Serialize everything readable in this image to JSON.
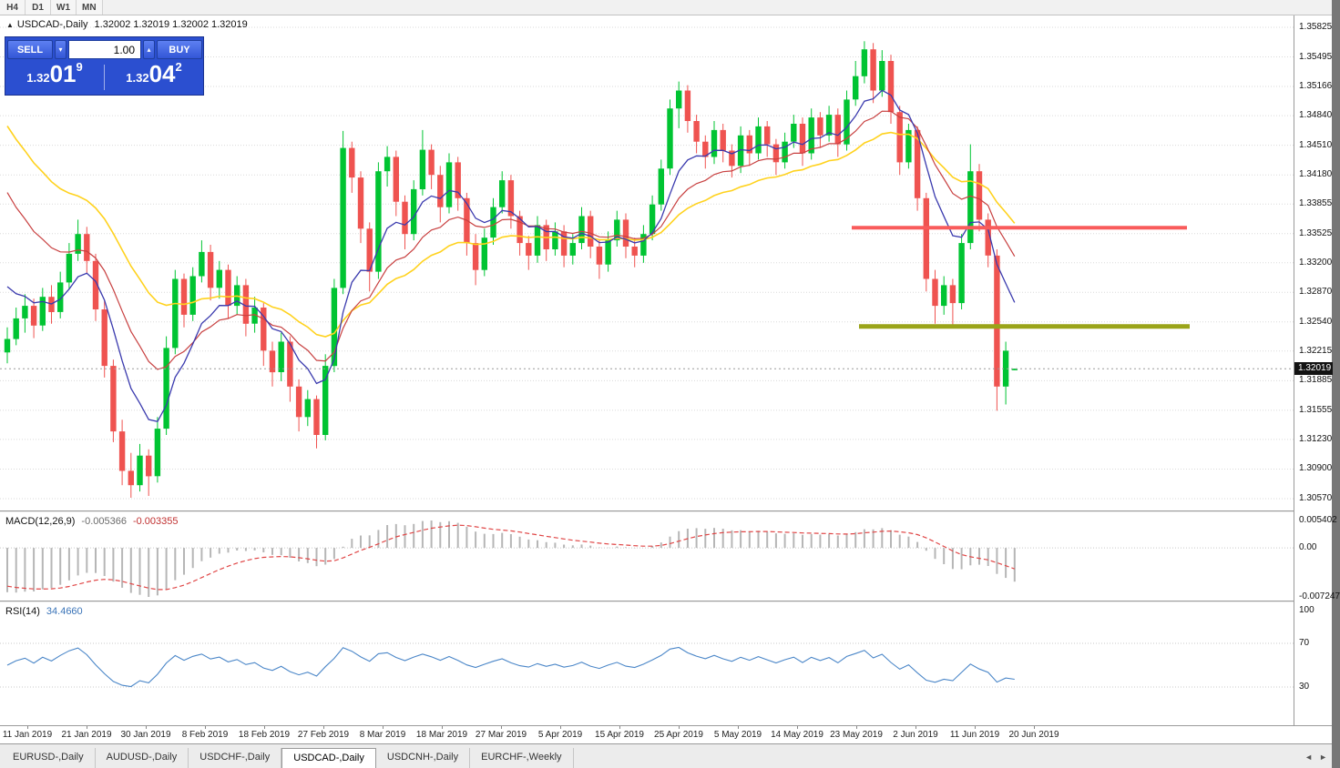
{
  "toolbar": {
    "timeframes": [
      "H4",
      "D1",
      "W1",
      "MN"
    ]
  },
  "chart_header": {
    "collapse_icon": "▲",
    "title": "USDCAD-,Daily",
    "ohlc": "1.32002 1.32019 1.32002 1.32019"
  },
  "trade_panel": {
    "sell_label": "SELL",
    "buy_label": "BUY",
    "volume": "1.00",
    "volume_down_icon": "▾",
    "volume_up_icon": "▴",
    "sell_price": {
      "base": "1.32",
      "big": "01",
      "sup": "9"
    },
    "buy_price": {
      "base": "1.32",
      "big": "04",
      "sup": "2"
    }
  },
  "chart_data": {
    "type": "candlestick",
    "symbol": "USDCAD-",
    "timeframe": "Daily",
    "current_price": "1.32019",
    "up_color": "#00c432",
    "down_color": "#ef5350",
    "grid": true,
    "y_range": {
      "top": 1.35825,
      "bottom": 1.3057
    },
    "y_ticks": [
      "1.35825",
      "1.35495",
      "1.35166",
      "1.34840",
      "1.34510",
      "1.34180",
      "1.33855",
      "1.33525",
      "1.33200",
      "1.32870",
      "1.32540",
      "1.32215",
      "1.31885",
      "1.31555",
      "1.31230",
      "1.30900",
      "1.30570"
    ],
    "x_labels": [
      "11 Jan 2019",
      "21 Jan 2019",
      "30 Jan 2019",
      "8 Feb 2019",
      "18 Feb 2019",
      "27 Feb 2019",
      "8 Mar 2019",
      "18 Mar 2019",
      "27 Mar 2019",
      "5 Apr 2019",
      "15 Apr 2019",
      "25 Apr 2019",
      "5 May 2019",
      "14 May 2019",
      "23 May 2019",
      "2 Jun 2019",
      "11 Jun 2019",
      "20 Jun 2019"
    ],
    "candles": [
      [
        1.322,
        1.3248,
        1.3208,
        1.3235
      ],
      [
        1.3235,
        1.327,
        1.3228,
        1.3258
      ],
      [
        1.3258,
        1.3285,
        1.3242,
        1.3272
      ],
      [
        1.3272,
        1.328,
        1.3236,
        1.325
      ],
      [
        1.325,
        1.3292,
        1.3244,
        1.3282
      ],
      [
        1.3282,
        1.3295,
        1.3252,
        1.3265
      ],
      [
        1.3265,
        1.331,
        1.3258,
        1.3298
      ],
      [
        1.3298,
        1.3342,
        1.329,
        1.333
      ],
      [
        1.333,
        1.3368,
        1.3322,
        1.3352
      ],
      [
        1.3352,
        1.336,
        1.3308,
        1.3322
      ],
      [
        1.3322,
        1.333,
        1.3255,
        1.3268
      ],
      [
        1.3268,
        1.3278,
        1.3192,
        1.3205
      ],
      [
        1.3205,
        1.3212,
        1.312,
        1.3132
      ],
      [
        1.3132,
        1.3145,
        1.3072,
        1.3088
      ],
      [
        1.3088,
        1.3108,
        1.3058,
        1.3072
      ],
      [
        1.3072,
        1.3118,
        1.3065,
        1.3105
      ],
      [
        1.3105,
        1.3112,
        1.306,
        1.3082
      ],
      [
        1.3082,
        1.3148,
        1.3075,
        1.3135
      ],
      [
        1.3135,
        1.3238,
        1.3128,
        1.3225
      ],
      [
        1.3225,
        1.3312,
        1.3218,
        1.3302
      ],
      [
        1.3302,
        1.3308,
        1.3248,
        1.3262
      ],
      [
        1.3262,
        1.3315,
        1.3255,
        1.3305
      ],
      [
        1.3305,
        1.3345,
        1.3298,
        1.3332
      ],
      [
        1.3332,
        1.334,
        1.3278,
        1.3292
      ],
      [
        1.3292,
        1.3322,
        1.328,
        1.3312
      ],
      [
        1.3312,
        1.3318,
        1.3258,
        1.3272
      ],
      [
        1.3272,
        1.3305,
        1.3262,
        1.3295
      ],
      [
        1.3295,
        1.3302,
        1.3238,
        1.3252
      ],
      [
        1.3252,
        1.3282,
        1.3242,
        1.327
      ],
      [
        1.327,
        1.3275,
        1.3205,
        1.3222
      ],
      [
        1.3222,
        1.3232,
        1.3182,
        1.3198
      ],
      [
        1.3198,
        1.3242,
        1.3188,
        1.3232
      ],
      [
        1.3232,
        1.3238,
        1.3165,
        1.3182
      ],
      [
        1.3182,
        1.319,
        1.3132,
        1.3148
      ],
      [
        1.3148,
        1.3178,
        1.3138,
        1.3168
      ],
      [
        1.3168,
        1.3172,
        1.3113,
        1.3128
      ],
      [
        1.3128,
        1.3218,
        1.3122,
        1.3205
      ],
      [
        1.3205,
        1.3302,
        1.3198,
        1.3292
      ],
      [
        1.3292,
        1.3467,
        1.3285,
        1.3448
      ],
      [
        1.3448,
        1.3455,
        1.3398,
        1.3415
      ],
      [
        1.3415,
        1.3422,
        1.3342,
        1.3358
      ],
      [
        1.3358,
        1.3365,
        1.3288,
        1.331
      ],
      [
        1.331,
        1.3432,
        1.3302,
        1.3422
      ],
      [
        1.3422,
        1.345,
        1.3405,
        1.3438
      ],
      [
        1.3438,
        1.3445,
        1.3372,
        1.3388
      ],
      [
        1.3388,
        1.3395,
        1.3335,
        1.3352
      ],
      [
        1.3352,
        1.3412,
        1.3345,
        1.3402
      ],
      [
        1.3402,
        1.3468,
        1.3395,
        1.3446
      ],
      [
        1.3446,
        1.3452,
        1.3402,
        1.3418
      ],
      [
        1.3418,
        1.3428,
        1.3365,
        1.3382
      ],
      [
        1.3382,
        1.3442,
        1.3375,
        1.3432
      ],
      [
        1.3432,
        1.3438,
        1.3378,
        1.3392
      ],
      [
        1.3392,
        1.3398,
        1.3328,
        1.3342
      ],
      [
        1.3342,
        1.3352,
        1.3295,
        1.3312
      ],
      [
        1.3312,
        1.3358,
        1.3305,
        1.3348
      ],
      [
        1.3348,
        1.3392,
        1.334,
        1.3382
      ],
      [
        1.3382,
        1.3422,
        1.3375,
        1.3412
      ],
      [
        1.3412,
        1.3418,
        1.3358,
        1.3372
      ],
      [
        1.3372,
        1.3378,
        1.3328,
        1.3342
      ],
      [
        1.3342,
        1.335,
        1.3312,
        1.3328
      ],
      [
        1.3328,
        1.3372,
        1.332,
        1.3362
      ],
      [
        1.3362,
        1.3368,
        1.3322,
        1.3335
      ],
      [
        1.3335,
        1.3365,
        1.3328,
        1.3355
      ],
      [
        1.3355,
        1.3362,
        1.3315,
        1.3328
      ],
      [
        1.3328,
        1.3352,
        1.3318,
        1.3342
      ],
      [
        1.3342,
        1.3382,
        1.3335,
        1.3372
      ],
      [
        1.3372,
        1.3378,
        1.3325,
        1.3338
      ],
      [
        1.3338,
        1.3345,
        1.3302,
        1.3318
      ],
      [
        1.3318,
        1.3355,
        1.331,
        1.3345
      ],
      [
        1.3345,
        1.3378,
        1.3338,
        1.3368
      ],
      [
        1.3368,
        1.3375,
        1.3325,
        1.3338
      ],
      [
        1.3338,
        1.3348,
        1.3315,
        1.3328
      ],
      [
        1.3328,
        1.3362,
        1.332,
        1.3352
      ],
      [
        1.3352,
        1.3395,
        1.3345,
        1.3385
      ],
      [
        1.3385,
        1.3435,
        1.3378,
        1.3425
      ],
      [
        1.3425,
        1.3502,
        1.3418,
        1.3492
      ],
      [
        1.3492,
        1.3522,
        1.347,
        1.3512
      ],
      [
        1.3512,
        1.3518,
        1.3465,
        1.3478
      ],
      [
        1.3478,
        1.3485,
        1.3442,
        1.3455
      ],
      [
        1.3455,
        1.3462,
        1.3425,
        1.3438
      ],
      [
        1.3438,
        1.3478,
        1.343,
        1.3468
      ],
      [
        1.3468,
        1.3475,
        1.3432,
        1.3445
      ],
      [
        1.3445,
        1.3452,
        1.3415,
        1.3428
      ],
      [
        1.3428,
        1.3472,
        1.342,
        1.3462
      ],
      [
        1.3462,
        1.3468,
        1.3428,
        1.3442
      ],
      [
        1.3442,
        1.3482,
        1.3435,
        1.3472
      ],
      [
        1.3472,
        1.3478,
        1.3438,
        1.3452
      ],
      [
        1.3452,
        1.3458,
        1.3418,
        1.3432
      ],
      [
        1.3432,
        1.3465,
        1.3425,
        1.3455
      ],
      [
        1.3455,
        1.3485,
        1.3448,
        1.3475
      ],
      [
        1.3475,
        1.3482,
        1.3428,
        1.3442
      ],
      [
        1.3442,
        1.3492,
        1.3435,
        1.3482
      ],
      [
        1.3482,
        1.3488,
        1.3448,
        1.3462
      ],
      [
        1.3462,
        1.3495,
        1.3455,
        1.3485
      ],
      [
        1.3485,
        1.3492,
        1.3438,
        1.3452
      ],
      [
        1.3452,
        1.3512,
        1.3445,
        1.3502
      ],
      [
        1.3502,
        1.3545,
        1.3495,
        1.3528
      ],
      [
        1.3528,
        1.3567,
        1.352,
        1.3558
      ],
      [
        1.3558,
        1.3565,
        1.3498,
        1.3512
      ],
      [
        1.3512,
        1.3557,
        1.3505,
        1.3545
      ],
      [
        1.3545,
        1.3552,
        1.3475,
        1.3488
      ],
      [
        1.3488,
        1.3495,
        1.3418,
        1.3432
      ],
      [
        1.3432,
        1.3475,
        1.3425,
        1.3468
      ],
      [
        1.3468,
        1.3472,
        1.3378,
        1.3392
      ],
      [
        1.3392,
        1.3398,
        1.3288,
        1.3302
      ],
      [
        1.3302,
        1.3312,
        1.3252,
        1.3272
      ],
      [
        1.3272,
        1.3305,
        1.3262,
        1.3295
      ],
      [
        1.3295,
        1.3302,
        1.325,
        1.3275
      ],
      [
        1.3275,
        1.3352,
        1.3268,
        1.3342
      ],
      [
        1.3342,
        1.3452,
        1.3335,
        1.3422
      ],
      [
        1.3422,
        1.343,
        1.3355,
        1.3368
      ],
      [
        1.3368,
        1.3375,
        1.3315,
        1.3328
      ],
      [
        1.3328,
        1.3335,
        1.3155,
        1.3182
      ],
      [
        1.3182,
        1.3232,
        1.3162,
        1.3222
      ],
      [
        1.32002,
        1.32019,
        1.32002,
        1.32019
      ]
    ],
    "moving_averages": [
      {
        "name": "ma-slow-yellow",
        "period": 28,
        "seed": 1.349,
        "color": "#ffd21e",
        "width": 1.6
      },
      {
        "name": "ma-mid-red",
        "period": 16,
        "seed": 1.342,
        "color": "#c84040",
        "width": 1.2
      },
      {
        "name": "ma-fast-blue",
        "period": 8,
        "seed": 1.331,
        "color": "#3a3aae",
        "width": 1.3
      }
    ],
    "hlines": [
      {
        "name": "resistance-line",
        "price": 1.3359,
        "x1": 935,
        "x2": 1303,
        "color": "#f95b5b",
        "width": 4
      },
      {
        "name": "support-line",
        "price": 1.3249,
        "x1": 943,
        "x2": 1306,
        "color": "#9aa419",
        "width": 5
      }
    ],
    "macd": {
      "label": "MACD(12,26,9)",
      "value1": "-0.005366",
      "value2": "-0.003355",
      "fast": 12,
      "slow": 26,
      "signal": 9,
      "seed_fast": 1.335,
      "seed_slow": 1.3418,
      "seed_signal": -0.006,
      "scale_max": "0.005402",
      "scale_zero": "0.00",
      "scale_min": "-0.007247",
      "hist_color": "#b6b6b6",
      "signal_color": "#e04646"
    },
    "rsi": {
      "label": "RSI(14)",
      "value": "34.4660",
      "period": 14,
      "levels": [
        100,
        70,
        30
      ],
      "color": "#4a86c8"
    }
  },
  "tabs": {
    "items": [
      {
        "label": "EURUSD-,Daily",
        "active": false
      },
      {
        "label": "AUDUSD-,Daily",
        "active": false
      },
      {
        "label": "USDCHF-,Daily",
        "active": false
      },
      {
        "label": "USDCAD-,Daily",
        "active": true
      },
      {
        "label": "USDCNH-,Daily",
        "active": false
      },
      {
        "label": "EURCHF-,Weekly",
        "active": false
      }
    ],
    "scroll_left_icon": "◄",
    "scroll_right_icon": "►"
  }
}
